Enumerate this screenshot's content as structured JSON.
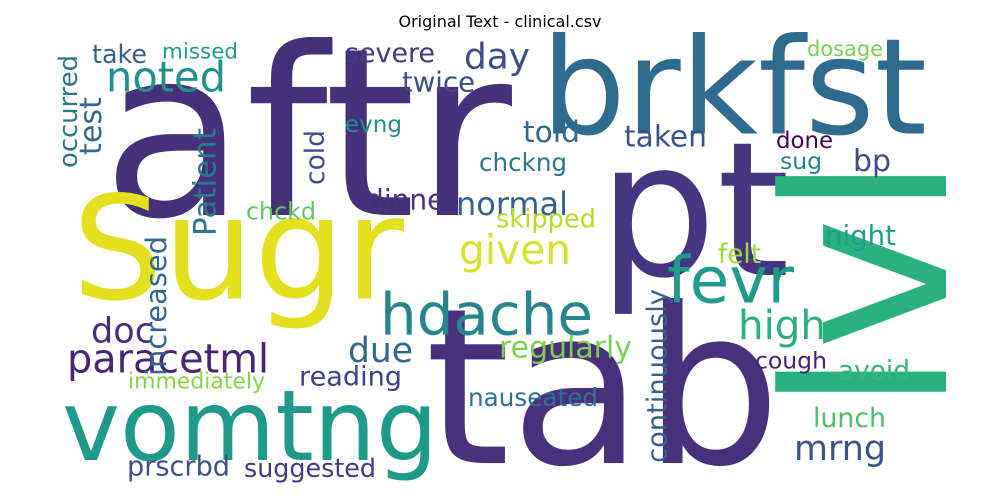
{
  "chart_data": {
    "type": "wordcloud",
    "title": "Original Text - clinical.csv",
    "grid": false,
    "legend": "none",
    "words": [
      {
        "text": "aftr",
        "color": "#45307a"
      },
      {
        "text": "Sugr",
        "color": "#e3e020"
      },
      {
        "text": "pt",
        "color": "#453681"
      },
      {
        "text": "brkfst",
        "color": "#2f6b8e"
      },
      {
        "text": "lvl",
        "color": "#2bb07f"
      },
      {
        "text": "tab",
        "color": "#48307d"
      },
      {
        "text": "vomtng",
        "color": "#1f9a8a"
      },
      {
        "text": "hdache",
        "color": "#26858e"
      },
      {
        "text": "fevr",
        "color": "#1e9b8a"
      },
      {
        "text": "day",
        "color": "#3f4a8a"
      },
      {
        "text": "given",
        "color": "#d6e22b"
      },
      {
        "text": "normal",
        "color": "#35608d"
      },
      {
        "text": "high",
        "color": "#2aaf7f"
      },
      {
        "text": "paracetml",
        "color": "#482576"
      },
      {
        "text": "doc",
        "color": "#472d7b"
      },
      {
        "text": "due",
        "color": "#31688e"
      },
      {
        "text": "mrng",
        "color": "#3b528b"
      },
      {
        "text": "bp",
        "color": "#3e4c8a"
      },
      {
        "text": "noted",
        "color": "#21918c"
      },
      {
        "text": "take",
        "color": "#35608d"
      },
      {
        "text": "missed",
        "color": "#1f9e89"
      },
      {
        "text": "severe",
        "color": "#443983"
      },
      {
        "text": "twice",
        "color": "#3e4c8a"
      },
      {
        "text": "evng",
        "color": "#21918c"
      },
      {
        "text": "told",
        "color": "#31688e"
      },
      {
        "text": "taken",
        "color": "#3b528b"
      },
      {
        "text": "done",
        "color": "#440154"
      },
      {
        "text": "sug",
        "color": "#25838e"
      },
      {
        "text": "dosage",
        "color": "#7ad151"
      },
      {
        "text": "chckng",
        "color": "#2a788e"
      },
      {
        "text": "dinner",
        "color": "#46327e"
      },
      {
        "text": "skipped",
        "color": "#b5de2b"
      },
      {
        "text": "chckd",
        "color": "#5ec962"
      },
      {
        "text": "night",
        "color": "#1f9e89"
      },
      {
        "text": "felt",
        "color": "#a0da39"
      },
      {
        "text": "cough",
        "color": "#482173"
      },
      {
        "text": "avoid",
        "color": "#35b779"
      },
      {
        "text": "regularly",
        "color": "#7ad151"
      },
      {
        "text": "reading",
        "color": "#424086"
      },
      {
        "text": "immediately",
        "color": "#86d549"
      },
      {
        "text": "nauseated",
        "color": "#2c728e"
      },
      {
        "text": "lunch",
        "color": "#4ac16d"
      },
      {
        "text": "suggested",
        "color": "#443983"
      },
      {
        "text": "prscrbd",
        "color": "#3b528b"
      },
      {
        "text": "continuously",
        "color": "#35608d"
      },
      {
        "text": "occurred",
        "color": "#2a788e"
      },
      {
        "text": "test",
        "color": "#31688e"
      },
      {
        "text": "cold",
        "color": "#3e4c8a"
      },
      {
        "text": "Patient",
        "color": "#2a788e"
      },
      {
        "text": "increased",
        "color": "#31688e"
      }
    ]
  }
}
